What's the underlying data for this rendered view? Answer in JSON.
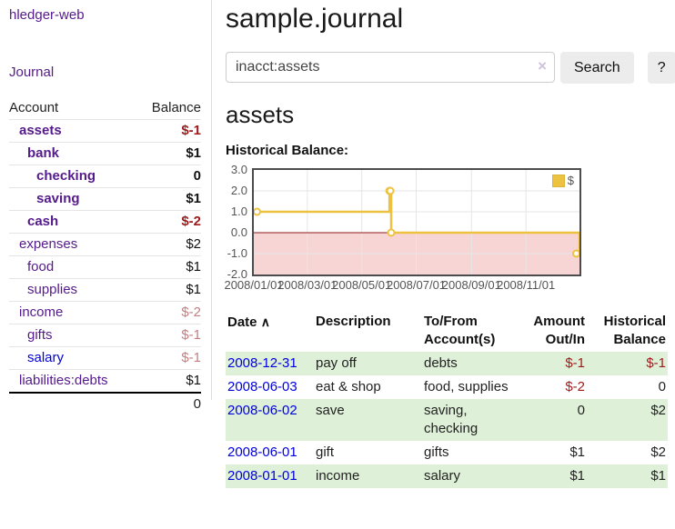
{
  "colors": {
    "link_purple": "#551a8b",
    "link_blue": "#0000dd",
    "negative_strong": "#9e1a1c",
    "negative_soft": "#c47f80",
    "row_highlight_green": "#dff0d8",
    "chart_series_gold": "#edc240"
  },
  "sidebar": {
    "app_title": "hledger-web",
    "journal_label": "Journal",
    "accounts_table": {
      "headers": {
        "account": "Account",
        "balance": "Balance"
      },
      "rows": [
        {
          "name": "assets",
          "level": 1,
          "bold": true,
          "visited": true,
          "balance": "$-1"
        },
        {
          "name": "bank",
          "level": 2,
          "bold": true,
          "visited": true,
          "balance": "$1"
        },
        {
          "name": "checking",
          "level": 3,
          "bold": true,
          "visited": true,
          "balance": "0"
        },
        {
          "name": "saving",
          "level": 3,
          "bold": true,
          "visited": true,
          "balance": "$1"
        },
        {
          "name": "cash",
          "level": 2,
          "bold": true,
          "visited": true,
          "balance": "$-2"
        },
        {
          "name": "expenses",
          "level": 1,
          "bold": false,
          "visited": true,
          "balance": "$2"
        },
        {
          "name": "food",
          "level": 2,
          "bold": false,
          "visited": true,
          "balance": "$1"
        },
        {
          "name": "supplies",
          "level": 2,
          "bold": false,
          "visited": true,
          "balance": "$1"
        },
        {
          "name": "income",
          "level": 1,
          "bold": false,
          "visited": true,
          "balance": "$-2"
        },
        {
          "name": "gifts",
          "level": 2,
          "bold": false,
          "visited": true,
          "balance": "$-1"
        },
        {
          "name": "salary",
          "level": 2,
          "bold": false,
          "visited": false,
          "balance": "$-1"
        },
        {
          "name": "liabilities:debts",
          "level": 1,
          "bold": false,
          "visited": true,
          "balance": "$1"
        }
      ],
      "total": "0"
    }
  },
  "main": {
    "title": "sample.journal",
    "search": {
      "value": "inacct:assets",
      "clear_icon": "×",
      "button_label": "Search",
      "help_label": "?"
    },
    "account_heading": "assets",
    "chart_heading": "Historical Balance:"
  },
  "chart_data": {
    "type": "line",
    "title": "Historical Balance",
    "steps": true,
    "series": [
      {
        "name": "$",
        "color": "#edc240",
        "points": [
          [
            "2008-01-01",
            1
          ],
          [
            "2008-06-01",
            2
          ],
          [
            "2008-06-02",
            2
          ],
          [
            "2008-06-03",
            0
          ],
          [
            "2008-12-31",
            -1
          ]
        ]
      }
    ],
    "x_range": [
      "2008-01-01",
      "2008-12-31"
    ],
    "ylim": [
      -2,
      3
    ],
    "x_ticks": [
      "2008/01/01",
      "2008/03/01",
      "2008/05/01",
      "2008/07/01",
      "2008/09/01",
      "2008/11/01"
    ],
    "y_ticks": [
      "3.0",
      "2.0",
      "1.0",
      "0.0",
      "-1.0",
      "-2.0"
    ],
    "grid": true,
    "legend": {
      "position": "top-right",
      "label": "$"
    },
    "negative_region_color": "#f8d5d5",
    "zero_line_color": "#8b1a1a"
  },
  "register": {
    "headers": {
      "date": "Date",
      "sort_icon": "∧",
      "description": "Description",
      "accounts": [
        "To/From",
        "Account(s)"
      ],
      "amount": [
        "Amount",
        "Out/In"
      ],
      "balance": [
        "Historical",
        "Balance"
      ]
    },
    "rows": [
      {
        "date": "2008-12-31",
        "description": "pay off",
        "accounts": "debts",
        "amount": "$-1",
        "balance": "$-1"
      },
      {
        "date": "2008-06-03",
        "description": "eat & shop",
        "accounts": "food, supplies",
        "amount": "$-2",
        "balance": "0"
      },
      {
        "date": "2008-06-02",
        "description": "save",
        "accounts": "saving, checking",
        "amount": "0",
        "balance": "$2"
      },
      {
        "date": "2008-06-01",
        "description": "gift",
        "accounts": "gifts",
        "amount": "$1",
        "balance": "$2"
      },
      {
        "date": "2008-01-01",
        "description": "income",
        "accounts": "salary",
        "amount": "$1",
        "balance": "$1"
      }
    ]
  }
}
